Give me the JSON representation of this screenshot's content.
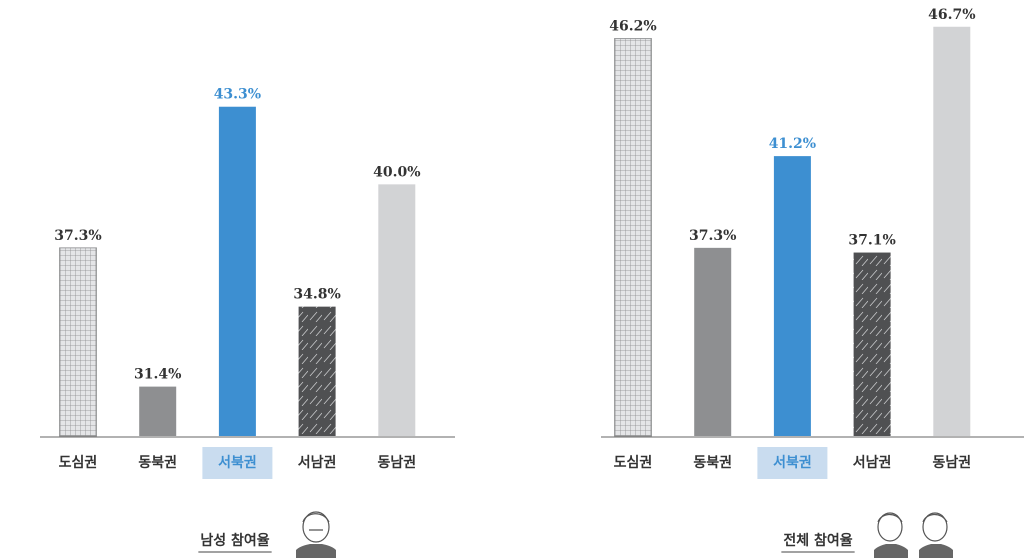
{
  "chart_data": [
    {
      "type": "bar",
      "title": "남성 참여율",
      "categories": [
        "도심권",
        "동북권",
        "서북권",
        "서남권",
        "동남권"
      ],
      "values": [
        37.3,
        31.4,
        43.3,
        34.8,
        40.0
      ],
      "value_labels": [
        "37.3%",
        "31.4%",
        "43.3%",
        "34.8%",
        "40.0%"
      ],
      "colors": [
        "#e4e5e7",
        "#8e8f91",
        "#3d8fd1",
        "#4f5052",
        "#d2d3d5"
      ],
      "patterns": [
        "grid",
        "none",
        "none",
        "hatch",
        "none"
      ],
      "highlight": 2,
      "ylim": [
        29.3,
        47.2
      ]
    },
    {
      "type": "bar",
      "title": "전체 참여율",
      "categories": [
        "도심권",
        "동북권",
        "서북권",
        "서남권",
        "동남권"
      ],
      "values": [
        46.2,
        37.3,
        41.2,
        37.1,
        46.7
      ],
      "value_labels": [
        "46.2%",
        "37.3%",
        "41.2%",
        "37.1%",
        "46.7%"
      ],
      "colors": [
        "#e4e5e7",
        "#8e8f91",
        "#3d8fd1",
        "#4f5052",
        "#d2d3d5"
      ],
      "patterns": [
        "grid",
        "none",
        "none",
        "hatch",
        "none"
      ],
      "highlight": 2,
      "ylim": [
        29.3,
        47.2
      ]
    }
  ]
}
